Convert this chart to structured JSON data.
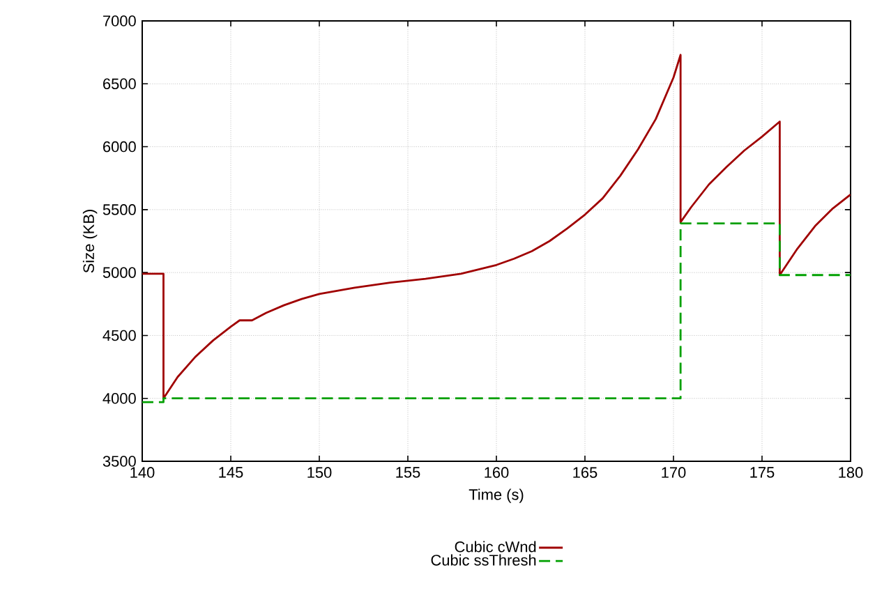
{
  "chart_data": {
    "type": "line",
    "xlabel": "Time (s)",
    "ylabel": "Size (KB)",
    "xlim": [
      140,
      180
    ],
    "ylim": [
      3500,
      7000
    ],
    "xticks": [
      140,
      145,
      150,
      155,
      160,
      165,
      170,
      175,
      180
    ],
    "yticks": [
      3500,
      4000,
      4500,
      5000,
      5500,
      6000,
      6500,
      7000
    ],
    "grid": true,
    "legend": "bottom",
    "series": [
      {
        "name": "Cubic cWnd",
        "color": "#a00000",
        "line_style": "solid",
        "x": [
          140,
          141.2,
          141.2,
          142,
          143,
          144,
          145,
          145.5,
          146.2,
          147,
          148,
          149,
          150,
          152,
          154,
          156,
          158,
          160,
          161,
          162,
          163,
          164,
          165,
          166,
          167,
          168,
          169,
          170,
          170.4,
          170.4,
          171,
          172,
          173,
          174,
          175,
          176,
          176,
          177,
          178,
          179,
          180
        ],
        "values": [
          4990,
          4990,
          4000,
          4170,
          4330,
          4460,
          4570,
          4620,
          4620,
          4680,
          4740,
          4790,
          4830,
          4880,
          4920,
          4950,
          4990,
          5060,
          5110,
          5170,
          5250,
          5350,
          5460,
          5590,
          5770,
          5980,
          6220,
          6550,
          6730,
          5400,
          5520,
          5700,
          5840,
          5970,
          6080,
          6200,
          4980,
          5190,
          5370,
          5510,
          5620
        ]
      },
      {
        "name": "Cubic ssThresh",
        "color": "#00a000",
        "line_style": "dashed",
        "x": [
          140,
          141.2,
          141.2,
          170.4,
          170.4,
          176,
          176,
          180
        ],
        "values": [
          3970,
          3970,
          4000,
          4000,
          5390,
          5390,
          4980,
          4980
        ]
      }
    ]
  }
}
